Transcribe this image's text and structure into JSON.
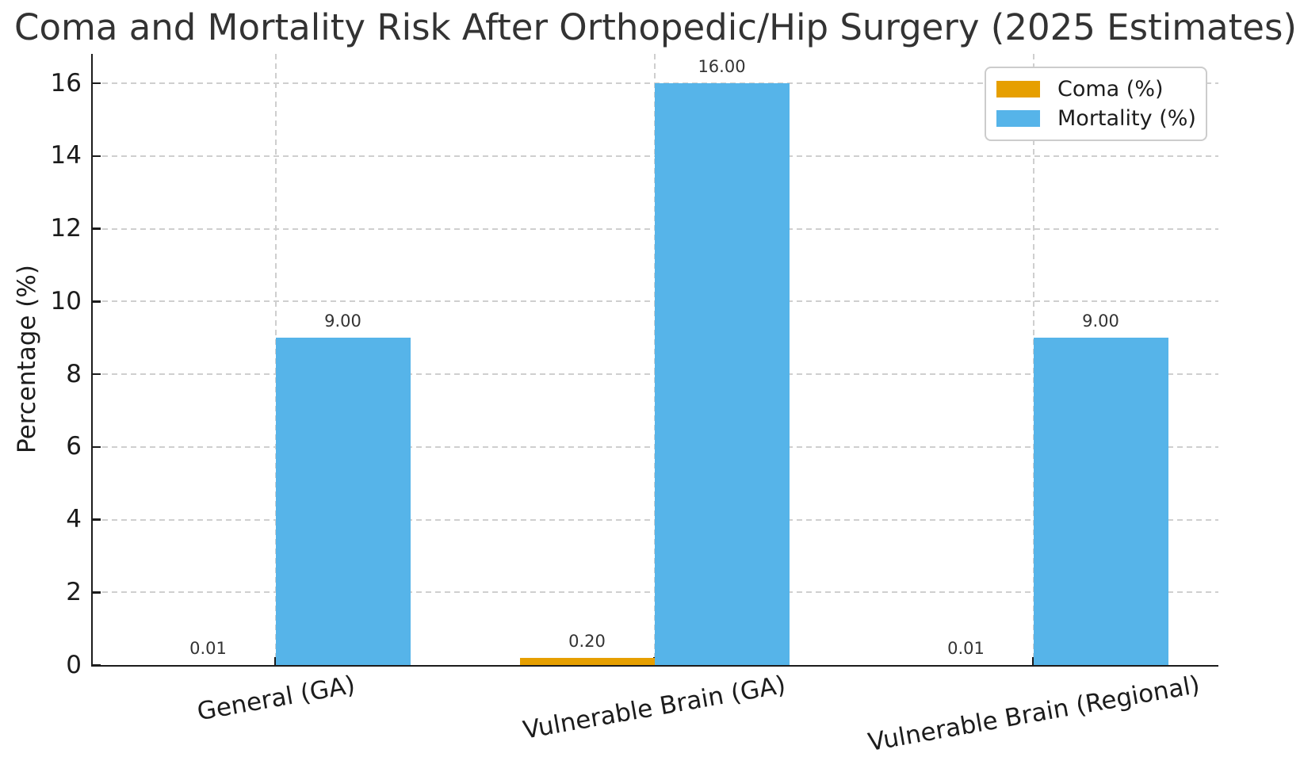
{
  "chart_data": {
    "type": "bar",
    "title": "Coma and Mortality Risk After Orthopedic/Hip Surgery (2025 Estimates)",
    "ylabel": "Percentage (%)",
    "xlabel": "",
    "categories": [
      "General (GA)",
      "Vulnerable Brain (GA)",
      "Vulnerable Brain (Regional)"
    ],
    "series": [
      {
        "name": "Coma (%)",
        "color": "#E69F00",
        "values": [
          0.01,
          0.2,
          0.01
        ],
        "value_labels": [
          "0.01",
          "0.20",
          "0.01"
        ]
      },
      {
        "name": "Mortality (%)",
        "color": "#56B4E9",
        "values": [
          9.0,
          16.0,
          9.0
        ],
        "value_labels": [
          "9.00",
          "16.00",
          "9.00"
        ]
      }
    ],
    "ylim": [
      0,
      16.8
    ],
    "yticks": [
      0,
      2,
      4,
      6,
      8,
      10,
      12,
      14,
      16
    ],
    "grid": "dashed, both axes",
    "legend_position": "upper right",
    "x_tick_rotation_deg": 10
  }
}
